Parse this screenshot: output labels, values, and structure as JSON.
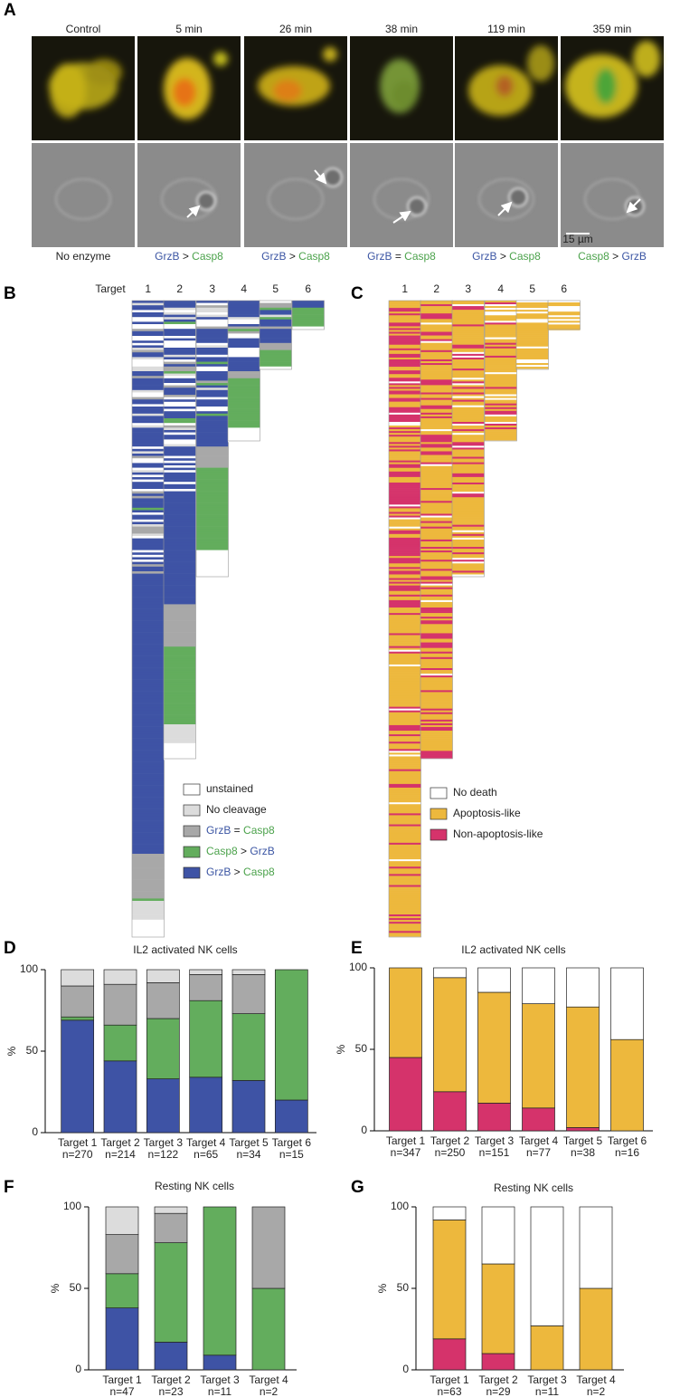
{
  "panel_a": {
    "label": "A",
    "timepoints": [
      "Control",
      "5 min",
      "26 min",
      "38 min",
      "119 min",
      "359 min"
    ],
    "captions": [
      [
        {
          "text": "No enzyme"
        }
      ],
      [
        {
          "text": "GrzB",
          "color": "#3b55a3"
        },
        {
          "text": " > "
        },
        {
          "text": "Casp8",
          "color": "#4ba24b"
        }
      ],
      [
        {
          "text": "GrzB",
          "color": "#3b55a3"
        },
        {
          "text": " > "
        },
        {
          "text": "Casp8",
          "color": "#4ba24b"
        }
      ],
      [
        {
          "text": "GrzB",
          "color": "#3b55a3"
        },
        {
          "text": " = "
        },
        {
          "text": "Casp8",
          "color": "#4ba24b"
        }
      ],
      [
        {
          "text": "GrzB",
          "color": "#3b55a3"
        },
        {
          "text": " > "
        },
        {
          "text": "Casp8",
          "color": "#4ba24b"
        }
      ],
      [
        {
          "text": "Casp8",
          "color": "#4ba24b"
        },
        {
          "text": " > "
        },
        {
          "text": "GrzB",
          "color": "#3b55a3"
        }
      ]
    ],
    "scale_bar": "15 µm"
  },
  "panel_b": {
    "label": "B",
    "header": "Target",
    "columns": [
      "1",
      "2",
      "3",
      "4",
      "5",
      "6"
    ],
    "legend": [
      {
        "color": "#ffffff",
        "parts": [
          {
            "text": "unstained"
          }
        ]
      },
      {
        "color": "#dcdcdc",
        "parts": [
          {
            "text": "No cleavage"
          }
        ]
      },
      {
        "color": "#a8a8a8",
        "parts": [
          {
            "text": "GrzB",
            "color": "#3b55a3"
          },
          {
            "text": " = "
          },
          {
            "text": "Casp8",
            "color": "#4ba24b"
          }
        ]
      },
      {
        "color": "#63ad5d",
        "parts": [
          {
            "text": "Casp8",
            "color": "#4ba24b"
          },
          {
            "text": " > "
          },
          {
            "text": "GrzB",
            "color": "#3b55a3"
          }
        ]
      },
      {
        "color": "#3e53a5",
        "parts": [
          {
            "text": "GrzB",
            "color": "#3b55a3"
          },
          {
            "text": " > "
          },
          {
            "text": "Casp8",
            "color": "#4ba24b"
          }
        ]
      }
    ]
  },
  "panel_c": {
    "label": "C",
    "columns": [
      "1",
      "2",
      "3",
      "4",
      "5",
      "6"
    ],
    "legend": [
      {
        "color": "#ffffff",
        "parts": [
          {
            "text": "No death"
          }
        ]
      },
      {
        "color": "#edb83d",
        "parts": [
          {
            "text": "Apoptosis-like"
          }
        ]
      },
      {
        "color": "#d5336b",
        "parts": [
          {
            "text": "Non-apoptosis-like"
          }
        ]
      }
    ]
  },
  "chart_data": [
    {
      "type": "bar",
      "stacked": true,
      "panel_label": "D",
      "title": "IL2 activated NK cells",
      "ylabel": "%",
      "categories": [
        "Target 1\nn=270",
        "Target 2\nn=214",
        "Target 3\nn=122",
        "Target 4\nn=65",
        "Target 5\nn=34",
        "Target 6\nn=15"
      ],
      "series": [
        {
          "color": "#3e53a5",
          "values": [
            69,
            44,
            33,
            34,
            32,
            20
          ]
        },
        {
          "color": "#63ad5d",
          "values": [
            2,
            22,
            37,
            47,
            41,
            80
          ]
        },
        {
          "color": "#a8a8a8",
          "values": [
            19,
            25,
            22,
            16,
            24,
            0
          ]
        },
        {
          "color": "#dcdcdc",
          "values": [
            10,
            9,
            8,
            3,
            3,
            0
          ]
        }
      ],
      "ylim": [
        0,
        100
      ],
      "yticks": [
        0,
        50,
        100
      ]
    },
    {
      "type": "bar",
      "stacked": true,
      "panel_label": "E",
      "title": "IL2 activated NK cells",
      "ylabel": "%",
      "categories": [
        "Target 1\nn=347",
        "Target 2\nn=250",
        "Target 3\nn=151",
        "Target 4\nn=77",
        "Target 5\nn=38",
        "Target 6\nn=16"
      ],
      "series": [
        {
          "color": "#d5336b",
          "values": [
            45,
            24,
            17,
            14,
            2,
            0
          ]
        },
        {
          "color": "#edb83d",
          "values": [
            55,
            70,
            68,
            64,
            74,
            56
          ]
        },
        {
          "color": "#ffffff",
          "values": [
            0,
            6,
            15,
            22,
            24,
            44
          ]
        }
      ],
      "ylim": [
        0,
        100
      ],
      "yticks": [
        0,
        50,
        100
      ]
    },
    {
      "type": "bar",
      "stacked": true,
      "panel_label": "F",
      "title": "Resting NK cells",
      "ylabel": "%",
      "categories": [
        "Target 1\nn=47",
        "Target 2\nn=23",
        "Target 3\nn=11",
        "Target 4\nn=2"
      ],
      "series": [
        {
          "color": "#3e53a5",
          "values": [
            38,
            17,
            9,
            0
          ]
        },
        {
          "color": "#63ad5d",
          "values": [
            21,
            61,
            91,
            50
          ]
        },
        {
          "color": "#a8a8a8",
          "values": [
            24,
            18,
            0,
            50
          ]
        },
        {
          "color": "#dcdcdc",
          "values": [
            17,
            4,
            0,
            0
          ]
        }
      ],
      "ylim": [
        0,
        100
      ],
      "yticks": [
        0,
        50,
        100
      ]
    },
    {
      "type": "bar",
      "stacked": true,
      "panel_label": "G",
      "title": "Resting NK cells",
      "ylabel": "%",
      "categories": [
        "Target 1\nn=63",
        "Target 2\nn=29",
        "Target 3\nn=11",
        "Target 4\nn=2"
      ],
      "series": [
        {
          "color": "#d5336b",
          "values": [
            19,
            10,
            0,
            0
          ]
        },
        {
          "color": "#edb83d",
          "values": [
            73,
            55,
            27,
            50
          ]
        },
        {
          "color": "#ffffff",
          "values": [
            8,
            35,
            73,
            50
          ]
        }
      ],
      "ylim": [
        0,
        100
      ],
      "yticks": [
        0,
        50,
        100
      ]
    }
  ]
}
